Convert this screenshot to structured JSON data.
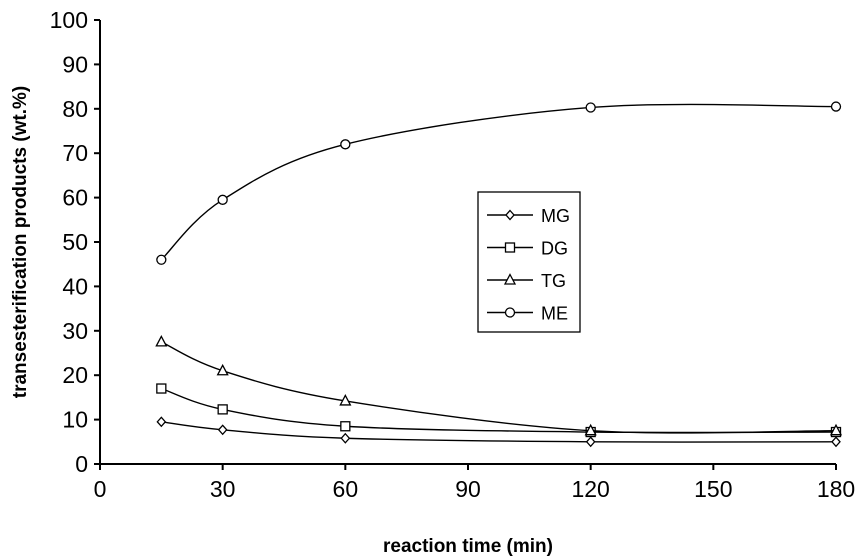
{
  "chart_data": {
    "type": "line",
    "title": "",
    "xlabel": "reaction time (min)",
    "ylabel": "transesterification  products  (wt.%)",
    "xlim": [
      0,
      180
    ],
    "ylim": [
      0,
      100
    ],
    "x_ticks": [
      0,
      30,
      60,
      90,
      120,
      150,
      180
    ],
    "y_ticks": [
      0,
      10,
      20,
      30,
      40,
      50,
      60,
      70,
      80,
      90,
      100
    ],
    "grid": false,
    "legend_position": "center-right",
    "x": [
      15,
      30,
      60,
      120,
      180
    ],
    "series": [
      {
        "name": "MG",
        "marker": "diamond",
        "values": [
          9.5,
          7.7,
          5.8,
          5.0,
          5.0
        ]
      },
      {
        "name": "DG",
        "marker": "square",
        "values": [
          17.0,
          12.3,
          8.5,
          7.2,
          7.2
        ]
      },
      {
        "name": "TG",
        "marker": "triangle",
        "values": [
          27.5,
          21.0,
          14.2,
          7.5,
          7.5
        ]
      },
      {
        "name": "ME",
        "marker": "circle",
        "values": [
          46.0,
          59.5,
          72.0,
          80.3,
          80.5
        ]
      }
    ]
  }
}
